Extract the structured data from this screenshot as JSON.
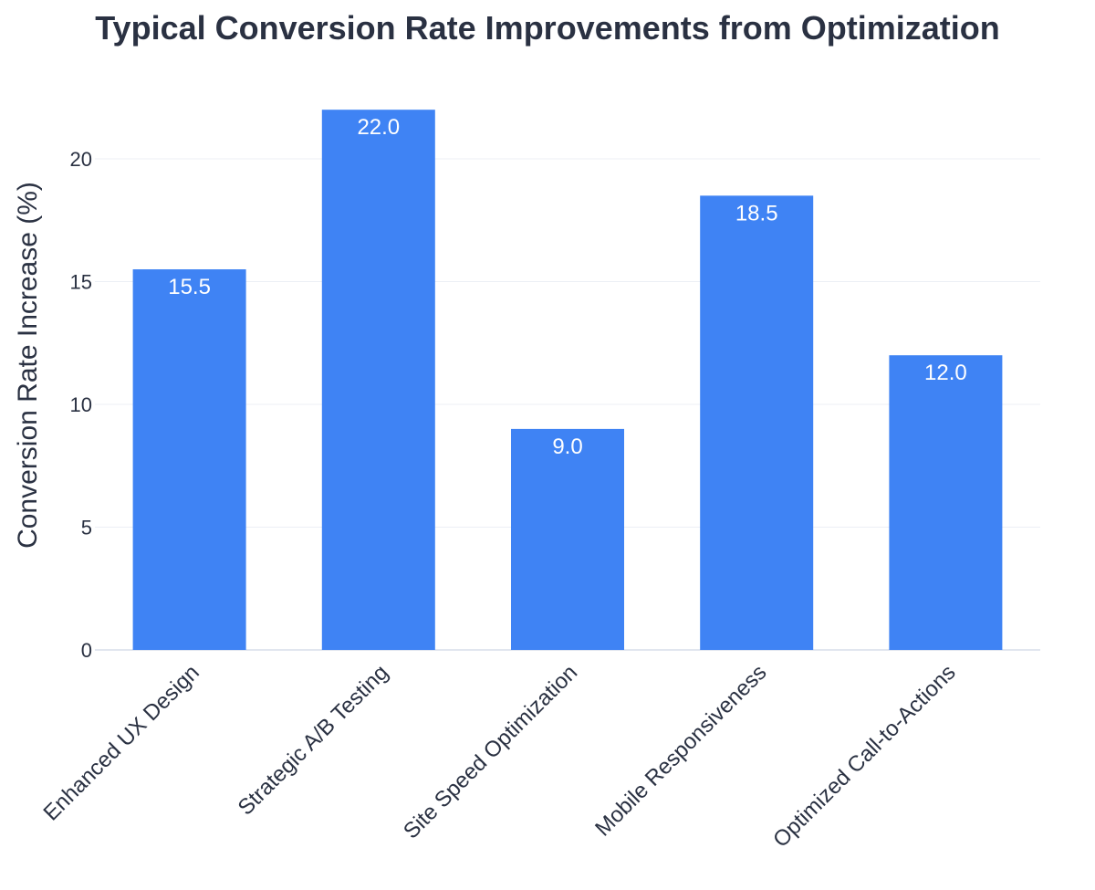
{
  "chart_data": {
    "type": "bar",
    "title": "Typical Conversion Rate Improvements from Optimization",
    "xlabel": "",
    "ylabel": "Conversion Rate Increase (%)",
    "categories": [
      "Enhanced UX Design",
      "Strategic A/B Testing",
      "Site Speed Optimization",
      "Mobile Responsiveness",
      "Optimized Call-to-Actions"
    ],
    "values": [
      15.5,
      22.0,
      9.0,
      18.5,
      12.0
    ],
    "data_labels": [
      "15.5",
      "22.0",
      "9.0",
      "18.5",
      "12.0"
    ],
    "ylim": [
      0,
      22
    ],
    "yticks": [
      0,
      5,
      10,
      15,
      20
    ],
    "ytick_labels": [
      "0",
      "5",
      "10",
      "15",
      "20"
    ],
    "grid": true,
    "legend": false,
    "colors": {
      "bar": "#3f83f4",
      "grid": "#eceff5",
      "baseline": "#e1e6ef",
      "text": "#2a3142",
      "bar_label": "#ffffff"
    }
  }
}
